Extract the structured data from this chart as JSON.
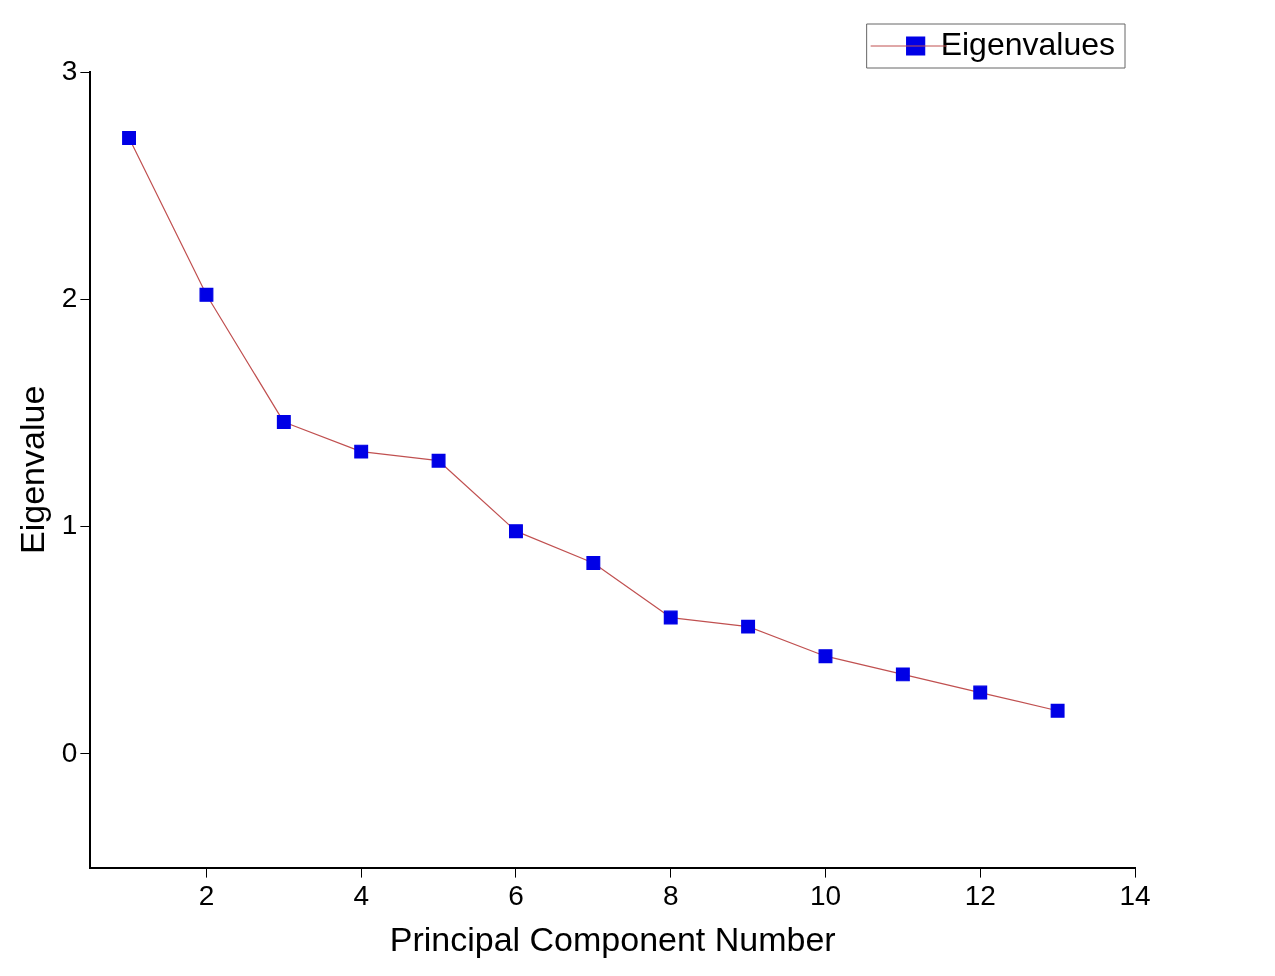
{
  "chart_data": {
    "type": "line",
    "xlabel": "Principal Component Number",
    "ylabel": "Eigenvalue",
    "x": [
      1,
      2,
      3,
      4,
      5,
      6,
      7,
      8,
      9,
      10,
      11,
      12,
      13
    ],
    "series": [
      {
        "name": "Eigenvalues",
        "color": "#0000e6",
        "values": [
          2.71,
          2.02,
          1.46,
          1.33,
          1.29,
          0.98,
          0.84,
          0.6,
          0.56,
          0.43,
          0.35,
          0.27,
          0.19
        ]
      }
    ],
    "xlim": [
      0.5,
      14
    ],
    "xticks": [
      2,
      4,
      6,
      8,
      10,
      12,
      14
    ],
    "ylim": [
      -0.5,
      3
    ],
    "yticks": [
      0,
      1,
      2,
      3
    ],
    "grid": false,
    "legend": "top right",
    "marker": "square",
    "line_style": "solid"
  }
}
